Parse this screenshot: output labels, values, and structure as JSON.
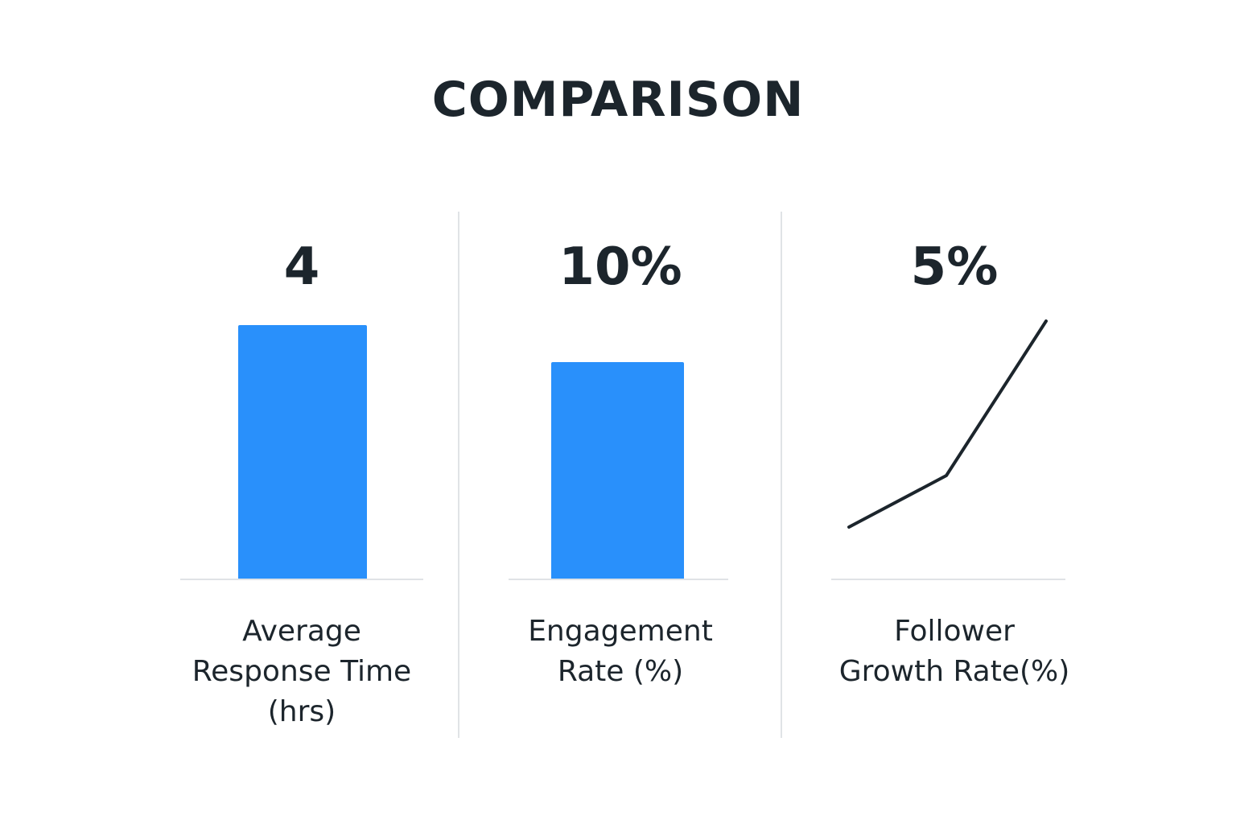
{
  "title": "COMPARISON",
  "colors": {
    "bar": "#2990fb",
    "line": "#1c252c",
    "text": "#1c252c",
    "divider": "#e0e3e6"
  },
  "panels": [
    {
      "value_label": "4",
      "label_lines": [
        "Average",
        "Response Time",
        "(hrs)"
      ]
    },
    {
      "value_label": "10%",
      "label_lines": [
        "Engagement",
        "Rate (%)"
      ]
    },
    {
      "value_label": "5%",
      "label_lines": [
        "Follower",
        "Growth Rate(%)"
      ]
    }
  ],
  "chart_data": [
    {
      "type": "bar",
      "categories": [
        "Average Response Time (hrs)"
      ],
      "values": [
        4
      ],
      "title": "",
      "xlabel": "Average Response Time (hrs)",
      "ylabel": "",
      "ylim": [
        0,
        4
      ]
    },
    {
      "type": "bar",
      "categories": [
        "Engagement Rate (%)"
      ],
      "values": [
        10
      ],
      "title": "",
      "xlabel": "Engagement Rate (%)",
      "ylabel": "",
      "ylim": [
        0,
        11.7
      ]
    },
    {
      "type": "line",
      "x": [
        0,
        1,
        2
      ],
      "values": [
        1,
        2,
        5
      ],
      "title": "",
      "xlabel": "Follower Growth Rate(%)",
      "ylabel": "",
      "ylim": [
        0,
        6
      ]
    }
  ]
}
